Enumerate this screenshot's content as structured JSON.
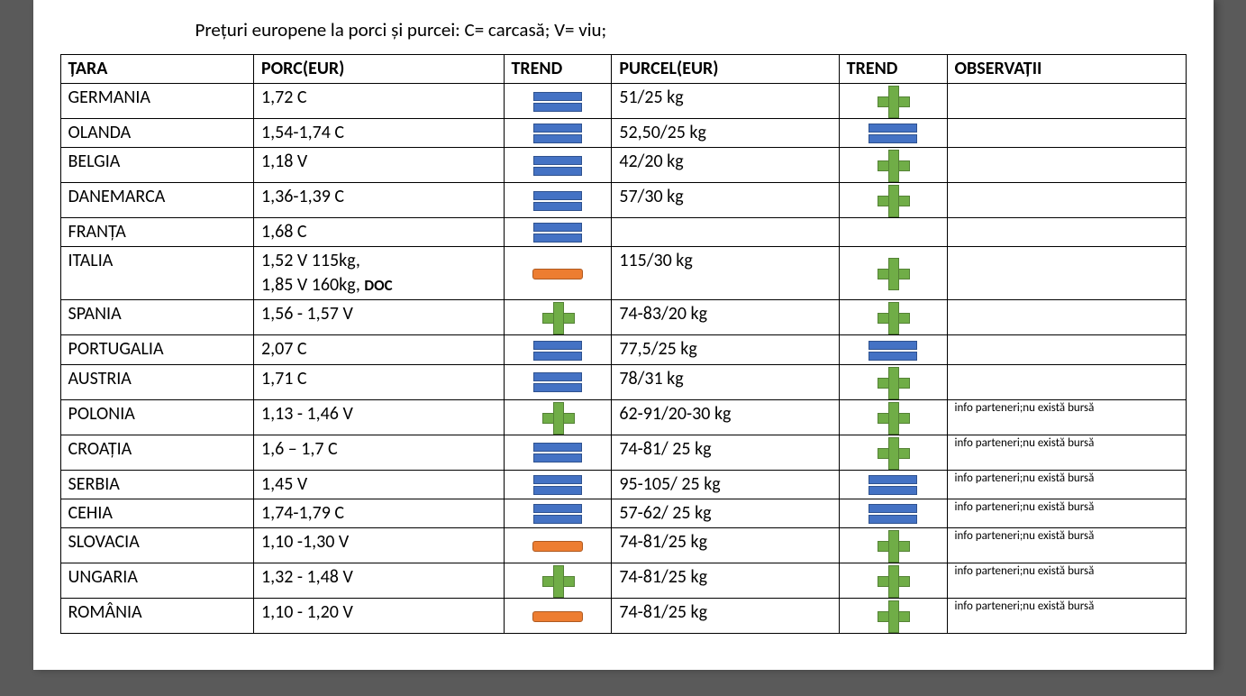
{
  "title": "Prețuri europene la porci și purcei: C= carcasă; V= viu;",
  "columns": [
    "ȚARA",
    "PORC(EUR)",
    "TREND",
    "PURCEL(EUR)",
    "TREND",
    "OBSERVAȚII"
  ],
  "rows": [
    {
      "tara": "GERMANIA",
      "porc": "1,72 C",
      "t1": "equal",
      "purcel": "51/25 kg",
      "t2": "plus",
      "obs": ""
    },
    {
      "tara": "OLANDA",
      "porc": "1,54-1,74 C",
      "t1": "equal",
      "purcel": "52,50/25 kg",
      "t2": "equal",
      "obs": ""
    },
    {
      "tara": "BELGIA",
      "porc": "1,18 V",
      "t1": "equal",
      "purcel": "42/20 kg",
      "t2": "plus",
      "obs": ""
    },
    {
      "tara": "DANEMARCA",
      "porc": "1,36-1,39 C",
      "t1": "equal",
      "purcel": "57/30 kg",
      "t2": "plus",
      "obs": ""
    },
    {
      "tara": "FRANȚA",
      "porc": "1,68 C",
      "t1": "equal",
      "purcel": "",
      "t2": "",
      "obs": ""
    },
    {
      "tara": "ITALIA",
      "porc": "1,52 V 115kg,\n1,85 V 160kg, DOC",
      "t1": "minus",
      "purcel": "115/30 kg",
      "t2": "plus",
      "obs": ""
    },
    {
      "tara": "SPANIA",
      "porc": "1,56 - 1,57 V",
      "t1": "plus",
      "purcel": "74-83/20 kg",
      "t2": "plus",
      "obs": ""
    },
    {
      "tara": "PORTUGALIA",
      "porc": "2,07 C",
      "t1": "equal",
      "purcel": "77,5/25 kg",
      "t2": "equal",
      "obs": ""
    },
    {
      "tara": "AUSTRIA",
      "porc": "1,71 C",
      "t1": "equal",
      "purcel": "78/31 kg",
      "t2": "plus",
      "obs": ""
    },
    {
      "tara": "POLONIA",
      "porc": "1,13 - 1,46 V",
      "t1": "plus",
      "purcel": "62-91/20-30 kg",
      "t2": "plus",
      "obs": "info parteneri;nu există bursă"
    },
    {
      "tara": "CROAȚIA",
      "porc": "1,6 – 1,7 C",
      "t1": "equal",
      "purcel": "74-81/ 25 kg",
      "t2": "plus",
      "obs": "info parteneri;nu există bursă"
    },
    {
      "tara": "SERBIA",
      "porc": "1,45 V",
      "t1": "equal",
      "purcel": "95-105/ 25 kg",
      "t2": "equal",
      "obs": "info parteneri;nu există bursă"
    },
    {
      "tara": "CEHIA",
      "porc": "1,74-1,79 C",
      "t1": "equal",
      "purcel": "57-62/ 25 kg",
      "t2": "equal",
      "obs": "info parteneri;nu există bursă"
    },
    {
      "tara": "SLOVACIA",
      "porc": "1,10 -1,30 V",
      "t1": "minus",
      "purcel": "74-81/25 kg",
      "t2": "plus",
      "obs": "info parteneri;nu există bursă"
    },
    {
      "tara": "UNGARIA",
      "porc": "1,32 - 1,48 V",
      "t1": "plus",
      "purcel": "74-81/25 kg",
      "t2": "plus",
      "obs": "info parteneri;nu există bursă"
    },
    {
      "tara": "ROMÂNIA",
      "porc": "1,10 - 1,20 V",
      "t1": "minus",
      "purcel": "74-81/25 kg",
      "t2": "plus",
      "obs": "info parteneri;nu există bursă"
    }
  ],
  "icon_colors": {
    "equal_fill": "#4472c4",
    "equal_border": "#2f528f",
    "plus_fill": "#70ad47",
    "plus_border": "#548235",
    "minus_fill": "#ed7d31",
    "minus_border": "#ae5a21"
  }
}
